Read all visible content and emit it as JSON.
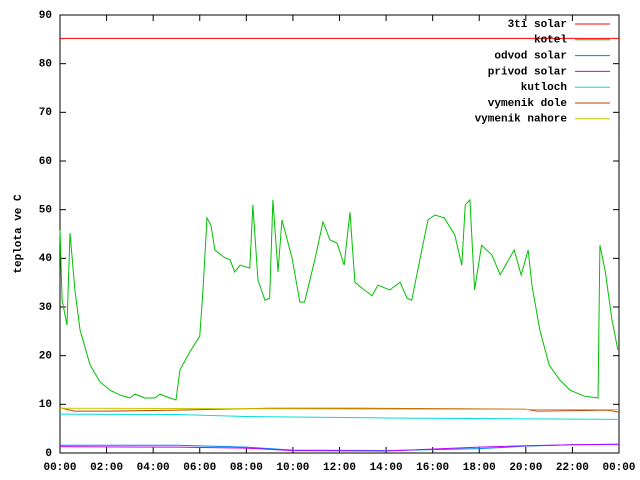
{
  "chart_data": {
    "type": "line",
    "ylabel": "teplota ve C",
    "xlim": [
      0,
      24
    ],
    "xticks": [
      {
        "value": 0,
        "label": "00:00"
      },
      {
        "value": 2,
        "label": "02:00"
      },
      {
        "value": 4,
        "label": "04:00"
      },
      {
        "value": 6,
        "label": "06:00"
      },
      {
        "value": 8,
        "label": "08:00"
      },
      {
        "value": 10,
        "label": "10:00"
      },
      {
        "value": 12,
        "label": "12:00"
      },
      {
        "value": 14,
        "label": "14:00"
      },
      {
        "value": 16,
        "label": "16:00"
      },
      {
        "value": 18,
        "label": "18:00"
      },
      {
        "value": 20,
        "label": "20:00"
      },
      {
        "value": 22,
        "label": "22:00"
      },
      {
        "value": 24,
        "label": "00:00"
      }
    ],
    "ylim": [
      0,
      90
    ],
    "yticks": [
      0,
      10,
      20,
      30,
      40,
      50,
      60,
      70,
      80,
      90
    ],
    "legend": "top-right",
    "series": [
      {
        "name": "3ti solar",
        "color": "#ff0000",
        "x": [
          0,
          24
        ],
        "values": [
          85.2,
          85.2
        ]
      },
      {
        "name": "kotel",
        "color": "#00c000",
        "x": [
          0,
          0.09,
          0.3,
          0.43,
          0.64,
          0.86,
          1.29,
          1.72,
          2.15,
          2.58,
          3.0,
          3.22,
          3.65,
          4.08,
          4.29,
          4.72,
          4.98,
          5.15,
          5.58,
          6.0,
          6.14,
          6.31,
          6.48,
          6.65,
          7.08,
          7.3,
          7.5,
          7.73,
          8.15,
          8.28,
          8.5,
          8.8,
          9.0,
          9.14,
          9.36,
          9.53,
          9.96,
          10.3,
          10.5,
          10.94,
          11.29,
          11.59,
          11.9,
          12.2,
          12.45,
          12.66,
          12.96,
          13.4,
          13.65,
          14.16,
          14.6,
          14.9,
          15.1,
          15.45,
          15.8,
          16.1,
          16.5,
          16.95,
          17.25,
          17.4,
          17.6,
          17.8,
          18.1,
          18.54,
          18.9,
          19.2,
          19.5,
          19.8,
          20.1,
          20.26,
          20.6,
          21.0,
          21.46,
          21.9,
          22.5,
          23.1,
          23.18,
          23.4,
          23.7,
          23.95
        ],
        "values": [
          45.8,
          31.4,
          26.3,
          45.2,
          33.5,
          25.3,
          18.1,
          14.6,
          12.9,
          11.9,
          11.3,
          12.1,
          11.3,
          11.3,
          12.1,
          11.3,
          10.9,
          17.1,
          20.8,
          24.0,
          33.5,
          48.3,
          46.8,
          41.7,
          40.1,
          39.7,
          37.2,
          38.6,
          38.0,
          51.0,
          35.5,
          31.4,
          31.8,
          52.0,
          37.2,
          47.9,
          40.1,
          31.0,
          31.0,
          39.7,
          47.5,
          43.8,
          43.1,
          38.6,
          49.5,
          35.1,
          33.9,
          32.3,
          34.5,
          33.5,
          35.1,
          31.8,
          31.4,
          39.7,
          47.9,
          48.9,
          48.3,
          44.8,
          38.6,
          51.0,
          52.0,
          33.5,
          42.7,
          40.7,
          36.6,
          39.2,
          41.7,
          36.6,
          41.7,
          34.5,
          25.3,
          18.1,
          15.0,
          12.9,
          11.7,
          11.3,
          42.7,
          37.6,
          27.3,
          21.2
        ]
      },
      {
        "name": "odvod solar",
        "color": "#0080ff",
        "x": [
          0,
          5,
          8,
          10,
          14,
          18,
          20,
          22,
          24
        ],
        "values": [
          1.6,
          1.6,
          1.2,
          0.6,
          0.5,
          0.9,
          1.4,
          1.7,
          1.8
        ]
      },
      {
        "name": "privod solar",
        "color": "#c000ff",
        "x": [
          0,
          5,
          8,
          10,
          14,
          18,
          20,
          22,
          24
        ],
        "values": [
          1.3,
          1.2,
          1.0,
          0.5,
          0.4,
          1.2,
          1.5,
          1.7,
          1.8
        ]
      },
      {
        "name": "kutloch",
        "color": "#00dddd",
        "x": [
          0,
          5,
          8,
          14,
          24
        ],
        "values": [
          8.0,
          7.9,
          7.5,
          7.2,
          6.9
        ]
      },
      {
        "name": "vymenik dole",
        "color": "#c04000",
        "x": [
          0,
          0.6,
          2,
          5,
          9,
          13,
          17,
          20,
          20.5,
          22,
          23.5,
          24
        ],
        "values": [
          9.3,
          8.6,
          8.6,
          8.8,
          9.2,
          9.2,
          9.1,
          9.0,
          8.6,
          8.7,
          8.8,
          8.4
        ]
      },
      {
        "name": "vymenik nahore",
        "color": "#c8c800",
        "x": [
          0,
          24
        ],
        "values": [
          9.2,
          8.9
        ]
      }
    ]
  }
}
